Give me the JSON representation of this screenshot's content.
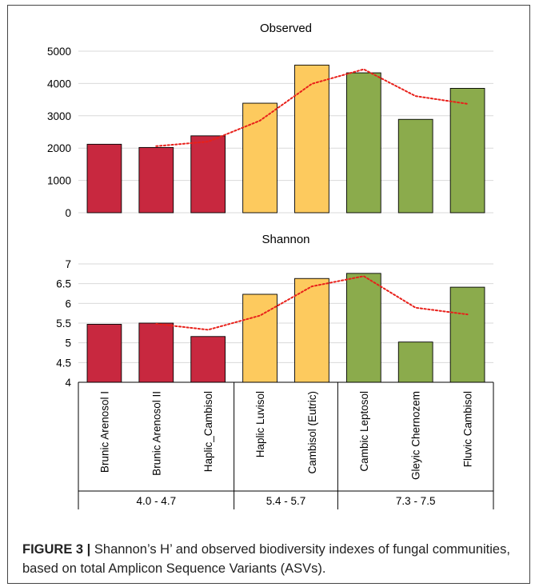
{
  "chart_data": [
    {
      "type": "bar",
      "title": "Observed",
      "categories": [
        "Brunic Arenosol I",
        "Brunic Arenosol II",
        "Haplic_Cambisol",
        "Haplic Luvisol",
        "Cambisol (Eutric)",
        "Cambic Leptosol",
        "Gleyic Chernozem",
        "Fluvic Cambisol"
      ],
      "values": [
        2120,
        2020,
        2380,
        3390,
        4570,
        4330,
        2890,
        3850
      ],
      "bar_colors": [
        "#c8283f",
        "#c8283f",
        "#c8283f",
        "#fdca5e",
        "#fdca5e",
        "#8bab4c",
        "#8bab4c",
        "#8bab4c"
      ],
      "ylim": [
        0,
        5000
      ],
      "yticks": [
        "0",
        "1000",
        "2000",
        "3000",
        "4000",
        "5000"
      ],
      "ytick_values": [
        0,
        1000,
        2000,
        3000,
        4000,
        5000
      ],
      "trend": {
        "style": "dotted",
        "color": "#e8201a",
        "start_index": 1,
        "values": [
          2060,
          2200,
          2850,
          3990,
          4440,
          3610,
          3370
        ]
      },
      "grid": true
    },
    {
      "type": "bar",
      "title": "Shannon",
      "categories": [
        "Brunic Arenosol I",
        "Brunic Arenosol II",
        "Haplic_Cambisol",
        "Haplic Luvisol",
        "Cambisol (Eutric)",
        "Cambic Leptosol",
        "Gleyic Chernozem",
        "Fluvic Cambisol"
      ],
      "values": [
        5.47,
        5.5,
        5.16,
        6.23,
        6.63,
        6.76,
        5.02,
        6.41
      ],
      "bar_colors": [
        "#c8283f",
        "#c8283f",
        "#c8283f",
        "#fdca5e",
        "#fdca5e",
        "#8bab4c",
        "#8bab4c",
        "#8bab4c"
      ],
      "ylim": [
        4,
        7
      ],
      "yticks": [
        "4",
        "4.5",
        "5",
        "5.5",
        "6",
        "6.5",
        "7"
      ],
      "ytick_values": [
        4,
        4.5,
        5,
        5.5,
        6,
        6.5,
        7
      ],
      "trend": {
        "style": "dotted",
        "color": "#e8201a",
        "start_index": 1,
        "values": [
          5.48,
          5.33,
          5.69,
          6.43,
          6.69,
          5.89,
          5.72
        ]
      },
      "grid": true,
      "group_labels": [
        {
          "label": "4.0 - 4.7",
          "from": 0,
          "to": 2
        },
        {
          "label": "5.4 - 5.7",
          "from": 3,
          "to": 4
        },
        {
          "label": "7.3 - 7.5",
          "from": 5,
          "to": 7
        }
      ]
    }
  ],
  "caption": {
    "label": "FIGURE 3 |",
    "text": " Shannon’s H’ and observed biodiversity indexes of fungal communities, based on total Amplicon Sequence Variants (ASVs)."
  }
}
